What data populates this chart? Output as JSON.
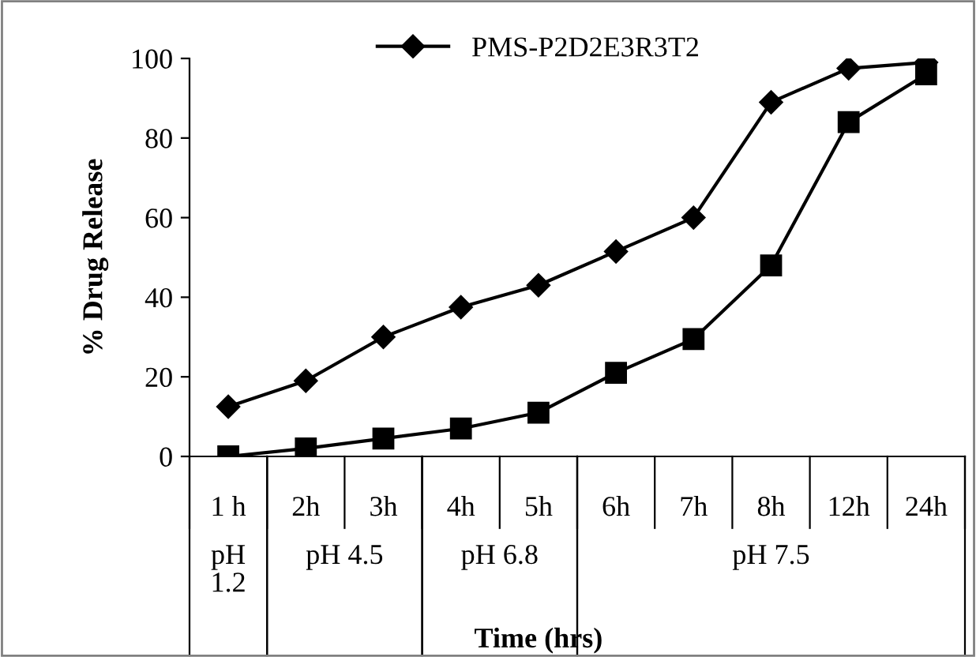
{
  "chart_data": {
    "type": "line",
    "xlabel": "Time (hrs)",
    "ylabel": "% Drug Release",
    "categories": [
      "1 h",
      "2h",
      "3h",
      "4h",
      "5h",
      "6h",
      "7h",
      "8h",
      "12h",
      "24h"
    ],
    "series": [
      {
        "name": "PMS-P2D2E3R3T2",
        "color": "#000000",
        "marker": "diamond",
        "values": [
          12.5,
          19,
          30,
          37.5,
          43,
          51.5,
          60,
          89,
          97.5,
          99
        ]
      },
      {
        "color": "#000000",
        "marker": "square",
        "values": [
          0,
          2,
          4.5,
          7,
          11,
          21,
          29.5,
          48,
          84,
          96
        ]
      }
    ],
    "annotations": [
      "pH 1.2",
      "pH 4.5",
      "pH 6.8",
      "pH 7.5"
    ],
    "ylim": [
      0,
      100
    ],
    "yticks": [
      0,
      20,
      40,
      60,
      80,
      100
    ],
    "grid": false,
    "legend": "top",
    "line_style": "solid"
  }
}
